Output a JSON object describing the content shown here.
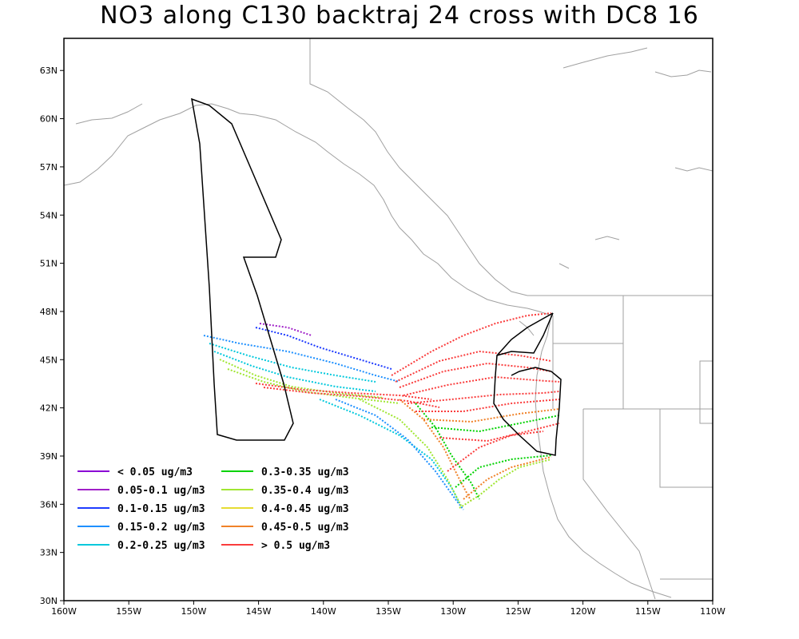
{
  "title": "NO3 along C130 backtraj 24 cross with DC8 16",
  "map": {
    "lon_range": [
      -160,
      -110
    ],
    "lat_range": [
      30,
      65
    ],
    "x_ticks": [
      "160W",
      "155W",
      "150W",
      "145W",
      "140W",
      "135W",
      "130W",
      "125W",
      "120W",
      "115W",
      "110W"
    ],
    "y_ticks": [
      "30N",
      "33N",
      "36N",
      "39N",
      "42N",
      "45N",
      "48N",
      "51N",
      "54N",
      "57N",
      "60N",
      "63N"
    ],
    "coastline_color": "#a0a0a0",
    "flight_track_color": "#000000"
  },
  "legend": [
    {
      "label": "< 0.05 ug/m3",
      "color": "#8a00d4"
    },
    {
      "label": "0.05-0.1 ug/m3",
      "color": "#a020c8"
    },
    {
      "label": "0.1-0.15 ug/m3",
      "color": "#1e3cff"
    },
    {
      "label": "0.15-0.2 ug/m3",
      "color": "#1e90ff"
    },
    {
      "label": "0.2-0.25 ug/m3",
      "color": "#00c8dc"
    },
    {
      "label": "0.3-0.35 ug/m3",
      "color": "#00d200"
    },
    {
      "label": "0.35-0.4 ug/m3",
      "color": "#a0e632"
    },
    {
      "label": "0.4-0.45 ug/m3",
      "color": "#e6dc32"
    },
    {
      "label": "0.45-0.5 ug/m3",
      "color": "#f08228"
    },
    {
      "label": "> 0.5 ug/m3",
      "color": "#fa3c3c"
    }
  ]
}
